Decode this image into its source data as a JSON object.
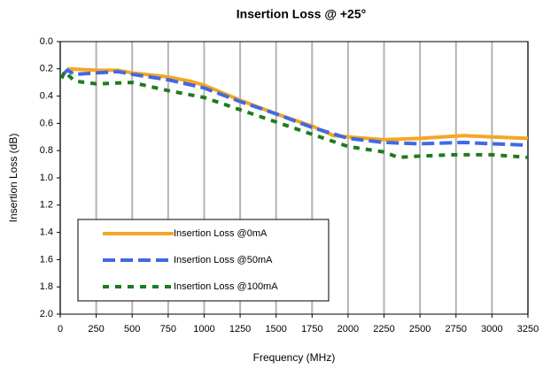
{
  "chart_data": {
    "type": "line",
    "title": "Insertion Loss @ +25°",
    "x_label": "Frequency (MHz)",
    "y_label": "Insertion Loss (dB)",
    "xlim": [
      0,
      3250
    ],
    "xticks": [
      0,
      250,
      500,
      750,
      1000,
      1250,
      1500,
      1750,
      2000,
      2250,
      2500,
      2750,
      3000,
      3250
    ],
    "ylim": [
      0,
      2
    ],
    "y_inverted": true,
    "yticks": [
      {
        "value": 0,
        "label": "0.0"
      },
      0.2,
      0.4,
      0.6,
      0.8,
      {
        "value": 1,
        "label": "1.0"
      },
      1.2,
      1.4,
      1.6,
      1.8,
      {
        "value": 2,
        "label": "2.0"
      }
    ],
    "grid": "x",
    "legend": "lower left",
    "series": [
      {
        "name": "Insertion Loss @0mA",
        "color": "#f5a623",
        "dash": "solid",
        "x": [
          50,
          250,
          400,
          500,
          750,
          900,
          1000,
          1250,
          1500,
          1750,
          1900,
          2000,
          2250,
          2500,
          2800,
          3000,
          3250
        ],
        "values": [
          0.2,
          0.21,
          0.21,
          0.23,
          0.26,
          0.29,
          0.32,
          0.43,
          0.53,
          0.62,
          0.69,
          0.7,
          0.72,
          0.71,
          0.69,
          0.7,
          0.71
        ]
      },
      {
        "name": "Insertion Loss @50mA",
        "color": "#4169e1",
        "dash": "dashed",
        "x": [
          20,
          50,
          100,
          250,
          400,
          500,
          750,
          1000,
          1250,
          1500,
          1750,
          2000,
          2250,
          2500,
          2800,
          3000,
          3250
        ],
        "values": [
          0.24,
          0.21,
          0.24,
          0.23,
          0.22,
          0.24,
          0.28,
          0.34,
          0.44,
          0.53,
          0.63,
          0.71,
          0.74,
          0.75,
          0.74,
          0.75,
          0.76
        ]
      },
      {
        "name": "Insertion Loss @100mA",
        "color": "#1e7b1e",
        "dash": "dotted",
        "x": [
          10,
          30,
          100,
          250,
          500,
          750,
          1000,
          1250,
          1500,
          1750,
          2000,
          2250,
          2350,
          2500,
          2750,
          3000,
          3250
        ],
        "values": [
          0.27,
          0.22,
          0.29,
          0.31,
          0.3,
          0.36,
          0.41,
          0.5,
          0.59,
          0.68,
          0.77,
          0.81,
          0.85,
          0.84,
          0.83,
          0.83,
          0.85
        ]
      }
    ]
  }
}
